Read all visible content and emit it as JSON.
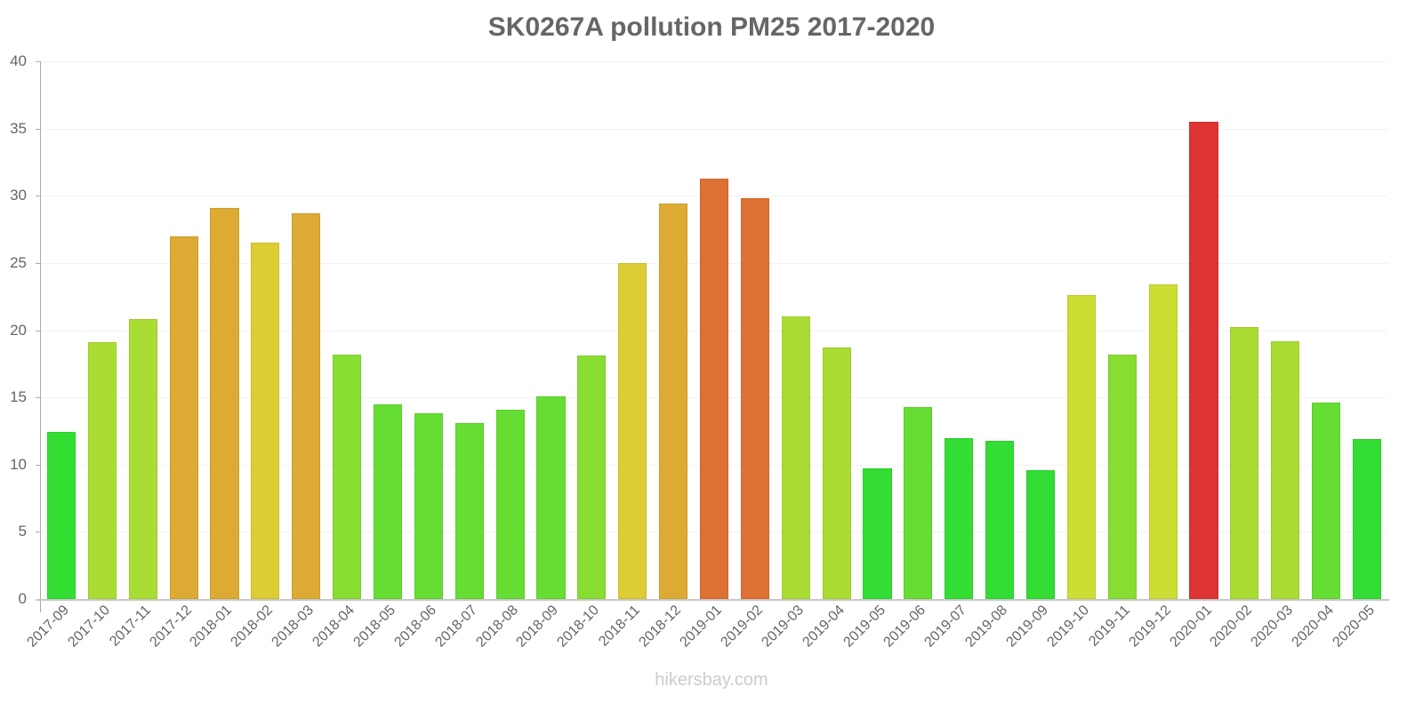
{
  "title": "SK0267A pollution PM25 2017-2020",
  "watermark": "hikersbay.com",
  "y_ticks": [
    "0",
    "5",
    "10",
    "15",
    "20",
    "25",
    "30",
    "35",
    "40"
  ],
  "chart_data": {
    "type": "bar",
    "title": "SK0267A pollution PM25 2017-2020",
    "xlabel": "",
    "ylabel": "",
    "ylim": [
      0,
      40
    ],
    "grid": true,
    "legend": null,
    "categories": [
      "2017-09",
      "2017-10",
      "2017-11",
      "2017-12",
      "2018-01",
      "2018-02",
      "2018-03",
      "2018-04",
      "2018-05",
      "2018-06",
      "2018-07",
      "2018-08",
      "2018-09",
      "2018-10",
      "2018-11",
      "2018-12",
      "2019-01",
      "2019-02",
      "2019-03",
      "2019-04",
      "2019-05",
      "2019-06",
      "2019-07",
      "2019-08",
      "2019-09",
      "2019-10",
      "2019-11",
      "2019-12",
      "2020-01",
      "2020-02",
      "2020-03",
      "2020-04",
      "2020-05"
    ],
    "values": [
      12.4,
      19.1,
      20.8,
      27.0,
      29.1,
      26.5,
      28.7,
      18.2,
      14.5,
      13.8,
      13.1,
      14.1,
      15.1,
      18.1,
      25.0,
      29.4,
      31.3,
      29.8,
      21.0,
      18.7,
      9.7,
      14.3,
      12.0,
      11.8,
      9.6,
      22.6,
      18.2,
      23.4,
      35.5,
      20.2,
      19.2,
      14.6,
      11.9
    ],
    "colors": [
      "#33dd33",
      "#aadd33",
      "#aadd33",
      "#ddaa33",
      "#ddaa33",
      "#ddcc33",
      "#ddaa33",
      "#88dd33",
      "#66dd33",
      "#66dd33",
      "#66dd33",
      "#66dd33",
      "#66dd33",
      "#88dd33",
      "#ddcc33",
      "#ddaa33",
      "#dd7033",
      "#dd7033",
      "#aadd33",
      "#aadd33",
      "#33dd33",
      "#66dd33",
      "#33dd33",
      "#33dd33",
      "#33dd33",
      "#ccdd33",
      "#88dd33",
      "#ccdd33",
      "#dd3333",
      "#aadd33",
      "#aadd33",
      "#66dd33",
      "#33dd33"
    ]
  }
}
